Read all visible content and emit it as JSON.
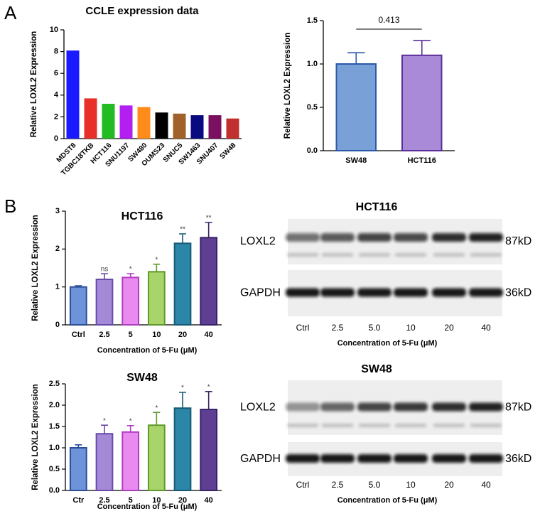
{
  "panel_labels": [
    "A",
    "B"
  ],
  "chart_data": [
    {
      "type": "bar",
      "title": "CCLE expression data",
      "ylabel": "Relative LOXL2 Expression",
      "categories": [
        "MDST8",
        "TGBC18TKB",
        "HCT116",
        "SNU1197",
        "SW480",
        "OUMS23",
        "SNUC5",
        "SW1463",
        "SNU407",
        "SW48"
      ],
      "values": [
        8.1,
        3.7,
        3.2,
        3.05,
        2.9,
        2.4,
        2.3,
        2.15,
        2.15,
        1.85
      ],
      "colors": [
        "#1a1aff",
        "#e8302a",
        "#22bb22",
        "#b31ff0",
        "#ff8c1a",
        "#000000",
        "#a0622a",
        "#0a0a80",
        "#7a1060",
        "#c0302e"
      ],
      "ylim": [
        0,
        10
      ],
      "yticks": [
        0,
        2,
        4,
        6,
        8,
        10
      ]
    },
    {
      "type": "bar",
      "ylabel": "Relative LOXL2 Expression",
      "categories": [
        "SW48",
        "HCT116"
      ],
      "values": [
        1.0,
        1.1
      ],
      "errors": [
        0.13,
        0.17
      ],
      "colors": [
        "#7aa0d8",
        "#a98ad8"
      ],
      "edge_colors": [
        "#2b5aa8",
        "#5a2f9a"
      ],
      "p_value": "0.413",
      "ylim": [
        0,
        1.5
      ],
      "yticks": [
        {
          "value": 0,
          "label": "0.0"
        },
        {
          "value": 0.5,
          "label": "0.5"
        },
        {
          "value": 1,
          "label": "1.0"
        },
        {
          "value": 1.5,
          "label": "1.5"
        }
      ]
    },
    {
      "type": "bar",
      "title": "HCT116",
      "ylabel": "Relative LOXL2 Expression",
      "xlabel": "Concentration of 5-Fu (μM)",
      "categories": [
        "Ctrl",
        "2.5",
        "5",
        "10",
        "20",
        "40"
      ],
      "values": [
        1.0,
        1.2,
        1.25,
        1.4,
        2.15,
        2.3
      ],
      "errors": [
        0.03,
        0.15,
        0.1,
        0.2,
        0.25,
        0.4
      ],
      "significance": [
        null,
        "ns",
        "*",
        "*",
        "**",
        "**"
      ],
      "colors": [
        "#6f93d8",
        "#a48ad6",
        "#e98af0",
        "#a8d46a",
        "#2b86a8",
        "#5e3f94"
      ],
      "edge_colors": [
        "#2a4f9a",
        "#6a4aa8",
        "#b03cc0",
        "#5e9a2a",
        "#175a75",
        "#3a2266"
      ],
      "ylim": [
        0,
        3
      ],
      "yticks": [
        0,
        1,
        2,
        3
      ]
    },
    {
      "type": "bar",
      "title": "SW48",
      "ylabel": "Relative LOXL2 Expression",
      "xlabel": "Concentration of 5-Fu (μM)",
      "categories": [
        "Ctr",
        "2.5",
        "5",
        "10",
        "20",
        "40"
      ],
      "values": [
        1.0,
        1.33,
        1.37,
        1.53,
        1.93,
        1.9
      ],
      "errors": [
        0.07,
        0.2,
        0.15,
        0.3,
        0.37,
        0.42
      ],
      "significance": [
        null,
        "*",
        "*",
        "*",
        "*",
        "*"
      ],
      "colors": [
        "#6f93d8",
        "#a48ad6",
        "#e98af0",
        "#a8d46a",
        "#2b86a8",
        "#5e3f94"
      ],
      "edge_colors": [
        "#2a4f9a",
        "#6a4aa8",
        "#b03cc0",
        "#5e9a2a",
        "#175a75",
        "#3a2266"
      ],
      "ylim": [
        0,
        2.5
      ],
      "yticks": [
        {
          "value": 0,
          "label": "0.0"
        },
        {
          "value": 0.5,
          "label": "0.5"
        },
        {
          "value": 1,
          "label": "1.0"
        },
        {
          "value": 1.5,
          "label": "1.5"
        },
        {
          "value": 2,
          "label": "2.0"
        },
        {
          "value": 2.5,
          "label": "2.5"
        }
      ]
    }
  ],
  "blots": [
    {
      "title": "HCT116",
      "rows": [
        {
          "label": "LOXL2",
          "size": "87kD"
        },
        {
          "label": "GAPDH",
          "size": "36kD"
        }
      ],
      "lanes": [
        "Ctrl",
        "2.5",
        "5.0",
        "10",
        "20",
        "40"
      ],
      "xlabel": "Concentration of 5-Fu (μM)"
    },
    {
      "title": "SW48",
      "rows": [
        {
          "label": "LOXL2",
          "size": "87kD"
        },
        {
          "label": "GAPDH",
          "size": "36kD"
        }
      ],
      "lanes": [
        "Ctrl",
        "2.5",
        "5.0",
        "10",
        "20",
        "40"
      ],
      "xlabel": "Concentration of 5-Fu (μM)"
    }
  ]
}
